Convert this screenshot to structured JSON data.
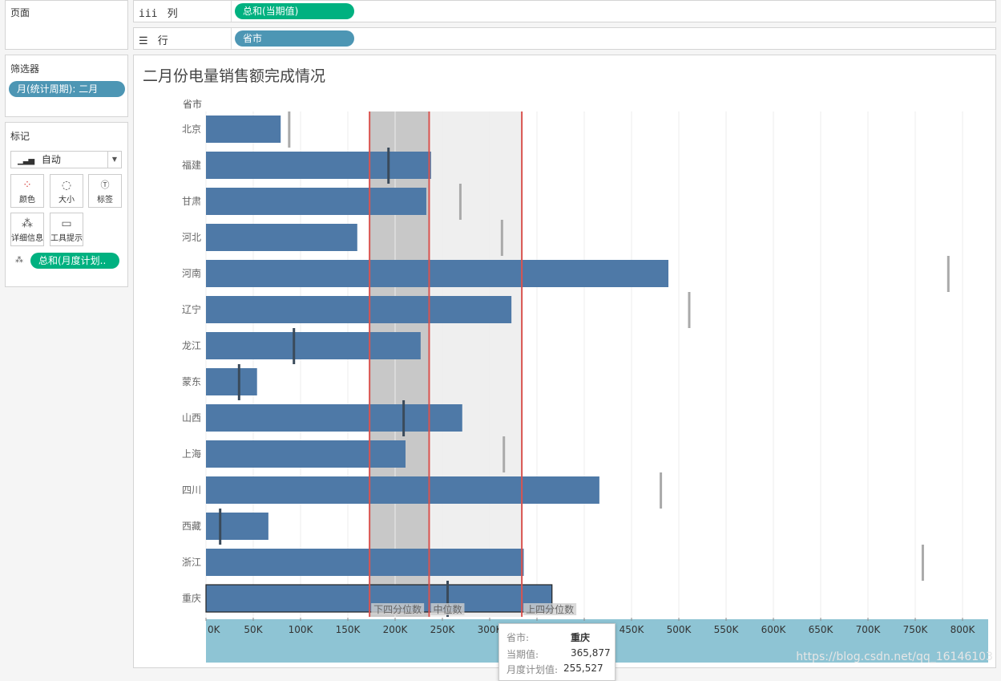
{
  "pages_panel": {
    "title": "页面"
  },
  "filters_panel": {
    "title": "筛选器",
    "filter_pill": "月(统计周期): 二月"
  },
  "marks_panel": {
    "title": "标记",
    "mark_type": "自动",
    "buttons": [
      {
        "label": "颜色",
        "icon": "color-icon"
      },
      {
        "label": "大小",
        "icon": "size-icon"
      },
      {
        "label": "标签",
        "icon": "label-icon"
      },
      {
        "label": "详细信息",
        "icon": "detail-icon"
      },
      {
        "label": "工具提示",
        "icon": "tooltip-icon"
      }
    ],
    "detail_pill": "总和(月度计划.."
  },
  "columns_shelf": {
    "icon": "iii",
    "label": "列",
    "pill": "总和(当期值)"
  },
  "rows_shelf": {
    "icon": "☰",
    "label": "行",
    "pill": "省市"
  },
  "chart_data": {
    "type": "bar",
    "title": "二月份电量销售额完成情况",
    "ylabel": "省市",
    "xlabel": "",
    "categories": [
      "北京",
      "福建",
      "甘肃",
      "河北",
      "河南",
      "辽宁",
      "龙江",
      "蒙东",
      "山西",
      "上海",
      "四川",
      "西藏",
      "浙江",
      "重庆"
    ],
    "values": [
      79000,
      238000,
      233000,
      160000,
      489000,
      323000,
      227000,
      54000,
      271000,
      211000,
      416000,
      66000,
      336000,
      365877
    ],
    "target_values": [
      88000,
      193000,
      269000,
      313000,
      785000,
      511000,
      93000,
      35000,
      209000,
      315000,
      481000,
      15000,
      758000,
      255527
    ],
    "xlim": [
      0,
      830000
    ],
    "xticks": [
      0,
      50000,
      100000,
      150000,
      200000,
      250000,
      300000,
      350000,
      400000,
      450000,
      500000,
      550000,
      600000,
      650000,
      700000,
      750000,
      800000
    ],
    "xtick_labels": [
      "0K",
      "50K",
      "100K",
      "150K",
      "200K",
      "250K",
      "300K",
      "",
      "",
      "450K",
      "500K",
      "550K",
      "600K",
      "650K",
      "700K",
      "750K",
      "800K"
    ],
    "reference_lines": [
      {
        "label": "下四分位数",
        "value": 173000
      },
      {
        "label": "中位数",
        "value": 236000
      },
      {
        "label": "上四分位数",
        "value": 334000
      }
    ],
    "highlighted": "重庆"
  },
  "tooltip": {
    "rows": [
      {
        "key": "省市:",
        "value": "重庆"
      },
      {
        "key": "当期值:",
        "value": "365,877"
      },
      {
        "key": "月度计划值:",
        "value": "255,527"
      }
    ]
  },
  "watermark": "https://blog.csdn.net/qq_16146103",
  "colors": {
    "bar": "#4e79a7",
    "ref_line": "#d9534f",
    "green_pill": "#00b180",
    "blue_pill": "#4d96b4",
    "axis_band": "#8ec4d4"
  }
}
